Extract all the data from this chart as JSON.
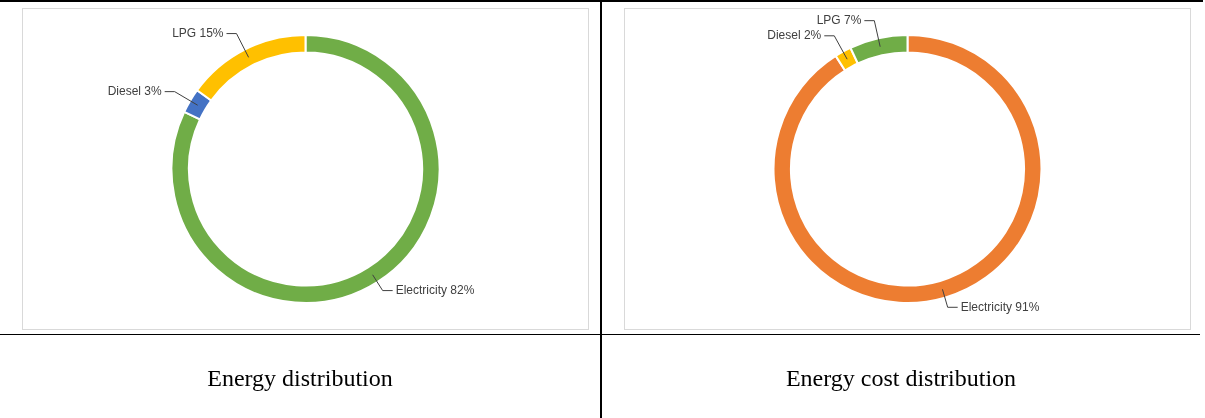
{
  "chart_data": [
    {
      "type": "donut",
      "title": "Energy distribution",
      "categories": [
        "Electricity",
        "Diesel",
        "LPG"
      ],
      "values": [
        82,
        3,
        15
      ],
      "colors": [
        "#70ad47",
        "#4472c4",
        "#ffc000"
      ],
      "value_labels": [
        "82%",
        "3%",
        "15%"
      ],
      "legend": false
    },
    {
      "type": "donut",
      "title": "Energy cost distribution",
      "categories": [
        "Electricity",
        "Diesel",
        "LPG"
      ],
      "values": [
        91,
        2,
        7
      ],
      "colors": [
        "#ed7d31",
        "#ffc000",
        "#70ad47"
      ],
      "value_labels": [
        "91%",
        "2%",
        "7%"
      ],
      "legend": false
    }
  ]
}
